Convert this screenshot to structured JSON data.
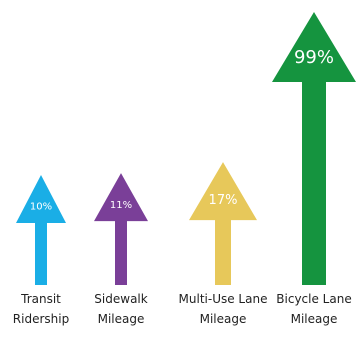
{
  "chart_data": {
    "type": "bar",
    "title": "",
    "xlabel": "",
    "ylabel": "",
    "categories": [
      [
        "Transit",
        "Ridership"
      ],
      [
        "Sidewalk",
        "Mileage"
      ],
      [
        "Multi-Use Lane",
        "Mileage"
      ],
      [
        "Bicycle Lane",
        "Mileage"
      ]
    ],
    "values": [
      10,
      11,
      17,
      99
    ],
    "value_labels": [
      "10%",
      "11%",
      "17%",
      "99%"
    ],
    "colors": [
      "#1aaee6",
      "#7a3f98",
      "#e7c85a",
      "#15943f"
    ],
    "ylim": [
      0,
      100
    ],
    "grid": false,
    "legend": false
  }
}
